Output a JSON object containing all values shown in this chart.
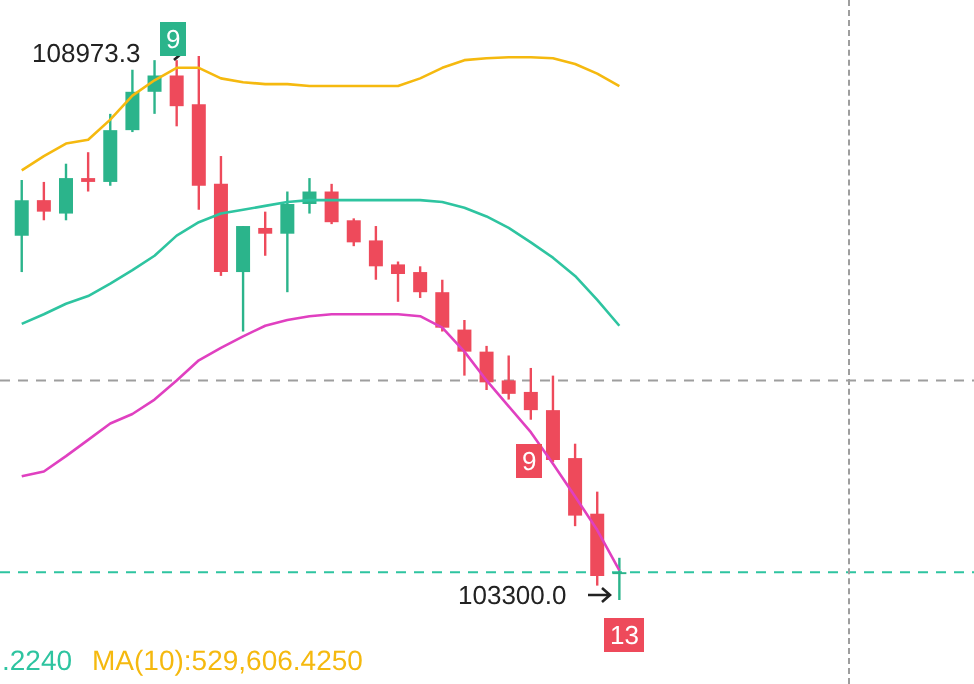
{
  "chart_data": {
    "type": "candlestick",
    "categories": [
      null,
      null,
      null,
      null,
      null,
      null,
      null,
      null,
      null,
      null,
      null,
      null,
      null,
      null,
      null,
      null,
      null,
      null,
      null,
      null,
      null,
      null,
      null,
      null,
      null,
      null,
      null,
      null
    ],
    "ohlc": [
      [
        107100,
        107680,
        106720,
        107470
      ],
      [
        107470,
        107660,
        107260,
        107350
      ],
      [
        107330,
        107850,
        107260,
        107700
      ],
      [
        107700,
        107970,
        107560,
        107660
      ],
      [
        107660,
        108370,
        107620,
        108200
      ],
      [
        108200,
        108830,
        108180,
        108600
      ],
      [
        108600,
        108930,
        108370,
        108770
      ],
      [
        108770,
        108930,
        108240,
        108450
      ],
      [
        108470,
        108973.3,
        107370,
        107620
      ],
      [
        107640,
        107930,
        106680,
        106720
      ],
      [
        106720,
        107200,
        106100,
        107200
      ],
      [
        107180,
        107350,
        106890,
        107120
      ],
      [
        107120,
        107560,
        106510,
        107430
      ],
      [
        107430,
        107700,
        107330,
        107560
      ],
      [
        107560,
        107640,
        107220,
        107240
      ],
      [
        107260,
        107280,
        106990,
        107030
      ],
      [
        107050,
        107200,
        106640,
        106780
      ],
      [
        106800,
        106830,
        106410,
        106700
      ],
      [
        106720,
        106780,
        106450,
        106510
      ],
      [
        106510,
        106640,
        106100,
        106140
      ],
      [
        106120,
        106220,
        105640,
        105890
      ],
      [
        105890,
        105950,
        105490,
        105570
      ],
      [
        105590,
        105850,
        105390,
        105450
      ],
      [
        105470,
        105720,
        105180,
        105280
      ],
      [
        105280,
        105640,
        104740,
        104760
      ],
      [
        104780,
        104930,
        104070,
        104180
      ],
      [
        104200,
        104430,
        103450,
        103550
      ],
      [
        103570,
        103740,
        103300,
        103590
      ]
    ],
    "series": [
      {
        "type": "line",
        "color": "#f5b90f",
        "values": [
          107780,
          107930,
          108060,
          108100,
          108310,
          108560,
          108720,
          108850,
          108850,
          108740,
          108700,
          108680,
          108680,
          108660,
          108660,
          108660,
          108660,
          108660,
          108740,
          108850,
          108930,
          108950,
          108960,
          108960,
          108950,
          108890,
          108790,
          108660
        ]
      },
      {
        "type": "line",
        "color": "#2ec4a0",
        "values": [
          106180,
          106280,
          106390,
          106470,
          106600,
          106740,
          106890,
          107100,
          107240,
          107330,
          107370,
          107410,
          107450,
          107470,
          107470,
          107470,
          107470,
          107470,
          107470,
          107450,
          107390,
          107300,
          107180,
          107030,
          106870,
          106680,
          106430,
          106160
        ]
      },
      {
        "type": "line",
        "color": "#e040c0",
        "values": [
          104590,
          104640,
          104800,
          104970,
          105140,
          105240,
          105390,
          105590,
          105800,
          105930,
          106050,
          106160,
          106220,
          106260,
          106280,
          106280,
          106280,
          106280,
          106260,
          106140,
          105890,
          105590,
          105320,
          105050,
          104720,
          104380,
          104030,
          103610
        ]
      }
    ],
    "ref_lines": [
      {
        "axis": "y",
        "value": 105590,
        "color": "#9e9e9e",
        "line_style": "dashed"
      },
      {
        "axis": "y",
        "value": 103590,
        "color": "#2ec4a0",
        "line_style": "dashed"
      }
    ],
    "annotations": [
      "108973.3",
      "103300.0",
      "9",
      "9",
      "13",
      ".2240",
      "MA(10):529,606.4250"
    ],
    "tick_labels": false
  }
}
